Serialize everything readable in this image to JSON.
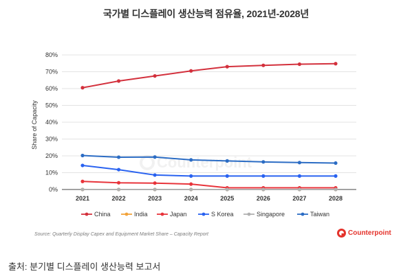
{
  "chart_data": {
    "type": "line",
    "title": "국가별 디스플레이 생산능력 점유율, 2021년-2028년",
    "xlabel": "",
    "ylabel": "Share of Capacity",
    "x": [
      "2021",
      "2022",
      "2023",
      "2024",
      "2025",
      "2026",
      "2027",
      "2028"
    ],
    "ylim": [
      0,
      80
    ],
    "yticks": [
      "0%",
      "10%",
      "20%",
      "30%",
      "40%",
      "50%",
      "60%",
      "70%",
      "80%"
    ],
    "grid": true,
    "legend": "bottom",
    "series": [
      {
        "name": "China",
        "color": "#d3303c",
        "values": [
          60.5,
          64.5,
          67.5,
          70.5,
          73.0,
          73.8,
          74.5,
          74.8
        ]
      },
      {
        "name": "India",
        "color": "#f2a33a",
        "values": [
          0,
          0,
          0,
          0,
          0,
          0,
          0,
          0
        ]
      },
      {
        "name": "Japan",
        "color": "#e8333a",
        "values": [
          4.8,
          4.0,
          3.8,
          3.2,
          1.0,
          1.0,
          1.0,
          1.0
        ]
      },
      {
        "name": "S Korea",
        "color": "#2962f0",
        "values": [
          14.3,
          11.8,
          8.6,
          8.0,
          8.0,
          8.0,
          8.0,
          8.0
        ]
      },
      {
        "name": "Singapore",
        "color": "#b0b0b0",
        "values": [
          0,
          0,
          0,
          0,
          0,
          0,
          0,
          0
        ]
      },
      {
        "name": "Taiwan",
        "color": "#2b6cc4",
        "values": [
          20.2,
          19.2,
          19.3,
          17.6,
          17.0,
          16.4,
          16.0,
          15.7
        ]
      }
    ]
  },
  "source_note": "Source: Quarterly Display Capex and Equipment Market Share – Capacity Report",
  "brand": "Counterpoint",
  "watermark": "Counterpoint",
  "caption": "출처: 분기별 디스플레이 생산능력 보고서"
}
